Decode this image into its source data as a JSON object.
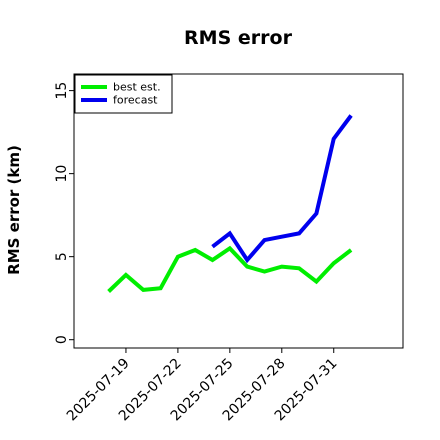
{
  "chart_data": {
    "type": "line",
    "title": "RMS error",
    "xlabel": "",
    "ylabel": "RMS error (km)",
    "x_ticks": [
      "2025-07-19",
      "2025-07-22",
      "2025-07-25",
      "2025-07-28",
      "2025-07-31"
    ],
    "y_ticks": [
      0,
      5,
      10,
      15
    ],
    "xlim": [
      "2025-07-16",
      "2025-08-04"
    ],
    "ylim": [
      -0.5,
      16
    ],
    "legend_position": "top-left",
    "grid": false,
    "series": [
      {
        "name": "best est.",
        "color": "#00ee00",
        "x": [
          "2025-07-18",
          "2025-07-19",
          "2025-07-20",
          "2025-07-21",
          "2025-07-22",
          "2025-07-23",
          "2025-07-24",
          "2025-07-25",
          "2025-07-26",
          "2025-07-27",
          "2025-07-28",
          "2025-07-29",
          "2025-07-30",
          "2025-07-31",
          "2025-08-01"
        ],
        "y": [
          2.9,
          3.9,
          3.0,
          3.1,
          5.0,
          5.4,
          4.8,
          5.5,
          4.4,
          4.1,
          4.4,
          4.3,
          3.5,
          4.6,
          5.4
        ]
      },
      {
        "name": "forecast",
        "color": "#0000ee",
        "x": [
          "2025-07-24",
          "2025-07-25",
          "2025-07-26",
          "2025-07-27",
          "2025-07-28",
          "2025-07-29",
          "2025-07-30",
          "2025-07-31",
          "2025-08-01"
        ],
        "y": [
          5.6,
          6.4,
          4.8,
          6.0,
          6.2,
          6.4,
          7.6,
          12.1,
          13.5
        ]
      }
    ]
  }
}
